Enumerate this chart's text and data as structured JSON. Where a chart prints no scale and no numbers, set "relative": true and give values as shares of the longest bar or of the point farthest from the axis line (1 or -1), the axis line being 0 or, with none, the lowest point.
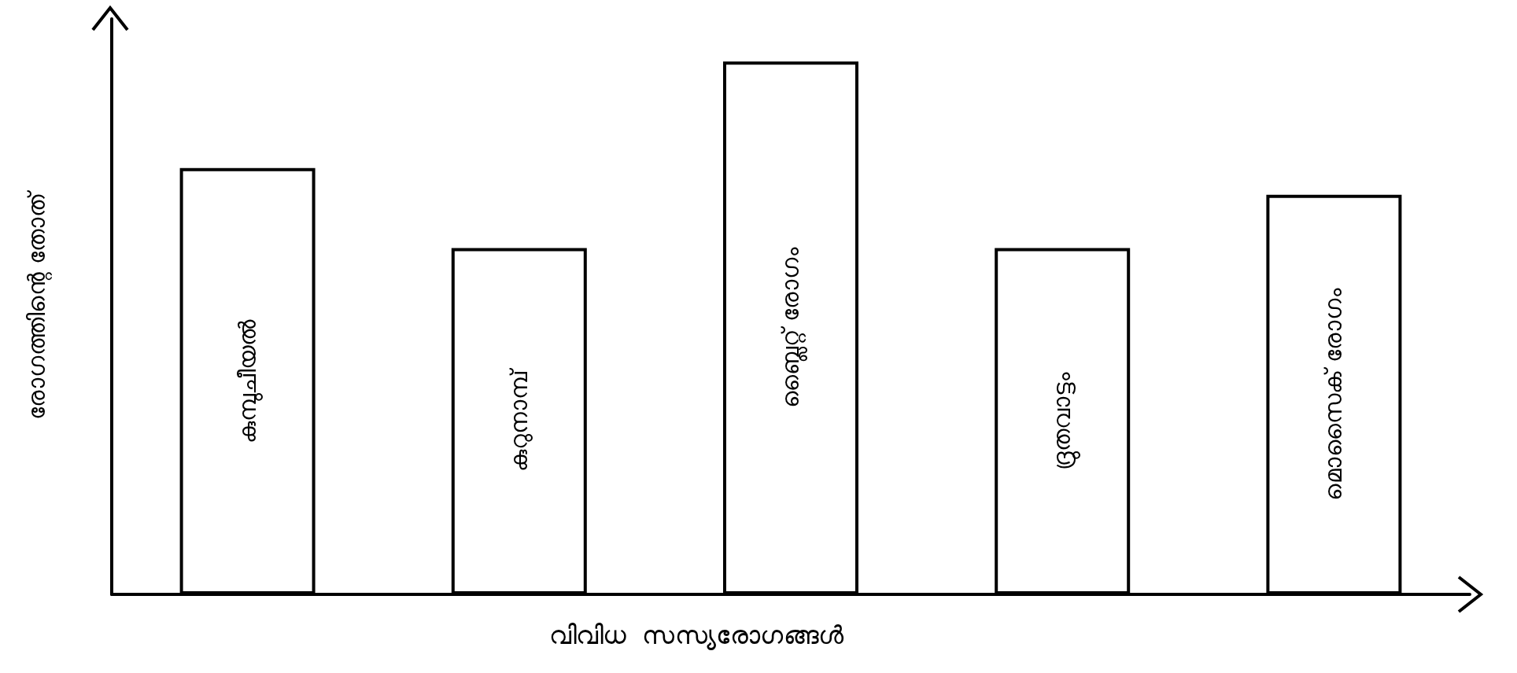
{
  "chart_data": {
    "type": "bar",
    "relative": true,
    "xlabel": "വിവിധ  സസ്യരോഗങ്ങൾ",
    "ylabel": "രോഗത്തിന്റെ തോത്",
    "categories": [
      "കുമ്പുചീയൽ",
      "കുറുനാമ്പ്",
      "ബ്ലൈറ്റ് രോഗം",
      "ദ്രുതവാട്ടം",
      "മൊസൈക് രോഗം"
    ],
    "values": [
      0.8,
      0.65,
      1,
      0.65,
      0.75
    ],
    "color": "#ffffff",
    "grid": false
  }
}
